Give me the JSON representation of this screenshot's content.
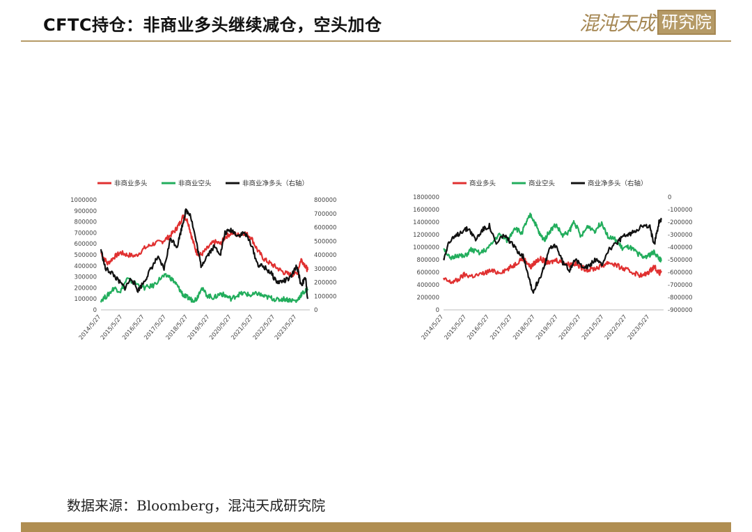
{
  "header": {
    "title": "CFTC持仓：非商业多头继续减仓，空头加仓",
    "logo_script": "混沌天成",
    "logo_boxed": "研究院"
  },
  "footer": {
    "source": "数据来源：Bloomberg，混沌天成研究院"
  },
  "colors": {
    "red": "#e03030",
    "green": "#22ad5c",
    "black": "#111111",
    "gold": "#b08e52"
  },
  "chart_data": [
    {
      "type": "line",
      "legend_position": "top",
      "grid": false,
      "x_ticks": [
        "2014/5/27",
        "2015/5/27",
        "2016/5/27",
        "2017/5/27",
        "2018/5/27",
        "2019/5/27",
        "2020/5/27",
        "2021/5/27",
        "2022/5/27",
        "2023/5/27"
      ],
      "left_axis": {
        "ticks": [
          "1000000",
          "900000",
          "800000",
          "700000",
          "600000",
          "500000",
          "400000",
          "300000",
          "200000",
          "100000",
          "0"
        ],
        "ylim": [
          0,
          1000000
        ]
      },
      "right_axis": {
        "ticks": [
          "800000",
          "700000",
          "600000",
          "500000",
          "400000",
          "300000",
          "200000",
          "100000",
          "0"
        ],
        "ylim": [
          0,
          800000
        ]
      },
      "series": [
        {
          "name": "非商业多头",
          "color": "#e03030",
          "axis": "left",
          "x": [
            2014.4,
            2014.7,
            2015.0,
            2015.3,
            2015.6,
            2016.0,
            2016.4,
            2016.8,
            2017.2,
            2017.5,
            2017.8,
            2018.0,
            2018.2,
            2018.4,
            2018.6,
            2018.8,
            2019.0,
            2019.3,
            2019.6,
            2019.9,
            2020.1,
            2020.4,
            2020.7,
            2021.0,
            2021.3,
            2021.6,
            2021.9,
            2022.2,
            2022.5,
            2022.8,
            2023.1,
            2023.4,
            2023.6,
            2023.8,
            2023.9
          ],
          "y": [
            520000,
            420000,
            480000,
            520000,
            500000,
            490000,
            560000,
            600000,
            620000,
            660000,
            720000,
            780000,
            860000,
            800000,
            640000,
            520000,
            500000,
            560000,
            620000,
            600000,
            660000,
            700000,
            680000,
            700000,
            660000,
            540000,
            460000,
            420000,
            380000,
            340000,
            320000,
            330000,
            460000,
            400000,
            360000
          ]
        },
        {
          "name": "非商业空头",
          "color": "#22ad5c",
          "axis": "left",
          "x": [
            2014.4,
            2014.7,
            2015.0,
            2015.3,
            2015.6,
            2016.0,
            2016.4,
            2016.8,
            2017.2,
            2017.5,
            2017.8,
            2018.0,
            2018.2,
            2018.4,
            2018.6,
            2018.8,
            2019.0,
            2019.3,
            2019.6,
            2019.9,
            2020.1,
            2020.4,
            2020.7,
            2021.0,
            2021.3,
            2021.6,
            2021.9,
            2022.2,
            2022.5,
            2022.8,
            2023.1,
            2023.4,
            2023.6,
            2023.8,
            2023.9
          ],
          "y": [
            90000,
            130000,
            200000,
            170000,
            280000,
            240000,
            200000,
            220000,
            300000,
            310000,
            250000,
            190000,
            130000,
            110000,
            90000,
            100000,
            200000,
            130000,
            110000,
            150000,
            130000,
            100000,
            140000,
            150000,
            130000,
            150000,
            120000,
            110000,
            90000,
            100000,
            90000,
            80000,
            140000,
            170000,
            190000
          ]
        },
        {
          "name": "非商业净多头（右轴）",
          "color": "#111111",
          "axis": "right",
          "x": [
            2014.4,
            2014.6,
            2014.9,
            2015.2,
            2015.5,
            2015.8,
            2016.1,
            2016.4,
            2016.7,
            2017.0,
            2017.3,
            2017.6,
            2017.9,
            2018.1,
            2018.3,
            2018.5,
            2018.8,
            2019.0,
            2019.3,
            2019.6,
            2019.9,
            2020.1,
            2020.4,
            2020.7,
            2021.0,
            2021.3,
            2021.6,
            2021.9,
            2022.2,
            2022.5,
            2022.8,
            2023.1,
            2023.4,
            2023.6,
            2023.8,
            2023.9
          ],
          "y": [
            440000,
            300000,
            270000,
            210000,
            160000,
            230000,
            140000,
            210000,
            300000,
            380000,
            300000,
            520000,
            460000,
            590000,
            720000,
            700000,
            480000,
            320000,
            400000,
            460000,
            410000,
            560000,
            580000,
            540000,
            560000,
            480000,
            330000,
            310000,
            270000,
            200000,
            210000,
            230000,
            320000,
            180000,
            230000,
            80000
          ]
        }
      ]
    },
    {
      "type": "line",
      "legend_position": "top",
      "grid": false,
      "x_ticks": [
        "2014/5/27",
        "2015/5/27",
        "2016/5/27",
        "2017/5/27",
        "2018/5/27",
        "2019/5/27",
        "2020/5/27",
        "2021/5/27",
        "2022/5/27",
        "2023/5/27"
      ],
      "left_axis": {
        "ticks": [
          "1800000",
          "1600000",
          "1400000",
          "1200000",
          "1000000",
          "800000",
          "600000",
          "400000",
          "200000",
          "0"
        ],
        "ylim": [
          0,
          1800000
        ]
      },
      "right_axis": {
        "ticks": [
          "0",
          "-100000",
          "-200000",
          "-300000",
          "-400000",
          "-500000",
          "-600000",
          "-700000",
          "-800000",
          "-900000"
        ],
        "ylim": [
          -900000,
          0
        ]
      },
      "series": [
        {
          "name": "商业多头",
          "color": "#e03030",
          "axis": "left",
          "x": [
            2014.4,
            2014.7,
            2015.0,
            2015.3,
            2015.6,
            2016.0,
            2016.4,
            2016.8,
            2017.2,
            2017.5,
            2017.8,
            2018.0,
            2018.2,
            2018.4,
            2018.6,
            2018.8,
            2019.0,
            2019.3,
            2019.6,
            2019.9,
            2020.1,
            2020.4,
            2020.7,
            2021.0,
            2021.3,
            2021.6,
            2021.9,
            2022.2,
            2022.5,
            2022.8,
            2023.1,
            2023.4,
            2023.6,
            2023.8,
            2023.9
          ],
          "y": [
            490000,
            440000,
            470000,
            560000,
            540000,
            560000,
            620000,
            600000,
            650000,
            720000,
            820000,
            780000,
            680000,
            760000,
            820000,
            780000,
            740000,
            800000,
            760000,
            720000,
            740000,
            680000,
            640000,
            660000,
            700000,
            760000,
            720000,
            660000,
            620000,
            580000,
            540000,
            620000,
            700000,
            580000,
            620000
          ]
        },
        {
          "name": "商业空头",
          "color": "#22ad5c",
          "axis": "left",
          "x": [
            2014.4,
            2014.7,
            2015.0,
            2015.3,
            2015.6,
            2016.0,
            2016.4,
            2016.8,
            2017.2,
            2017.5,
            2017.8,
            2018.0,
            2018.2,
            2018.4,
            2018.6,
            2018.8,
            2019.0,
            2019.3,
            2019.6,
            2019.9,
            2020.1,
            2020.4,
            2020.7,
            2021.0,
            2021.3,
            2021.6,
            2021.9,
            2022.2,
            2022.5,
            2022.8,
            2023.1,
            2023.4,
            2023.6,
            2023.8,
            2023.9
          ],
          "y": [
            1000000,
            800000,
            880000,
            840000,
            960000,
            900000,
            1000000,
            1200000,
            1100000,
            1320000,
            1220000,
            1380000,
            1520000,
            1380000,
            1200000,
            1120000,
            1240000,
            1360000,
            1180000,
            1260000,
            1420000,
            1160000,
            1340000,
            1260000,
            1400000,
            1160000,
            1120000,
            980000,
            1000000,
            920000,
            840000,
            880000,
            920000,
            820000,
            780000
          ]
        },
        {
          "name": "商业净多头（右轴）",
          "color": "#111111",
          "axis": "right",
          "x": [
            2014.4,
            2014.6,
            2014.9,
            2015.2,
            2015.5,
            2015.8,
            2016.1,
            2016.4,
            2016.7,
            2017.0,
            2017.3,
            2017.6,
            2017.9,
            2018.1,
            2018.3,
            2018.5,
            2018.8,
            2019.0,
            2019.3,
            2019.6,
            2019.9,
            2020.1,
            2020.4,
            2020.7,
            2021.0,
            2021.3,
            2021.6,
            2021.9,
            2022.2,
            2022.5,
            2022.8,
            2023.1,
            2023.4,
            2023.6,
            2023.8,
            2023.9
          ],
          "y": [
            -500000,
            -370000,
            -320000,
            -270000,
            -250000,
            -340000,
            -260000,
            -230000,
            -380000,
            -300000,
            -360000,
            -420000,
            -480000,
            -620000,
            -760000,
            -680000,
            -560000,
            -420000,
            -380000,
            -520000,
            -580000,
            -500000,
            -540000,
            -560000,
            -500000,
            -540000,
            -420000,
            -380000,
            -320000,
            -300000,
            -260000,
            -230000,
            -240000,
            -380000,
            -200000,
            -180000
          ]
        }
      ]
    }
  ]
}
